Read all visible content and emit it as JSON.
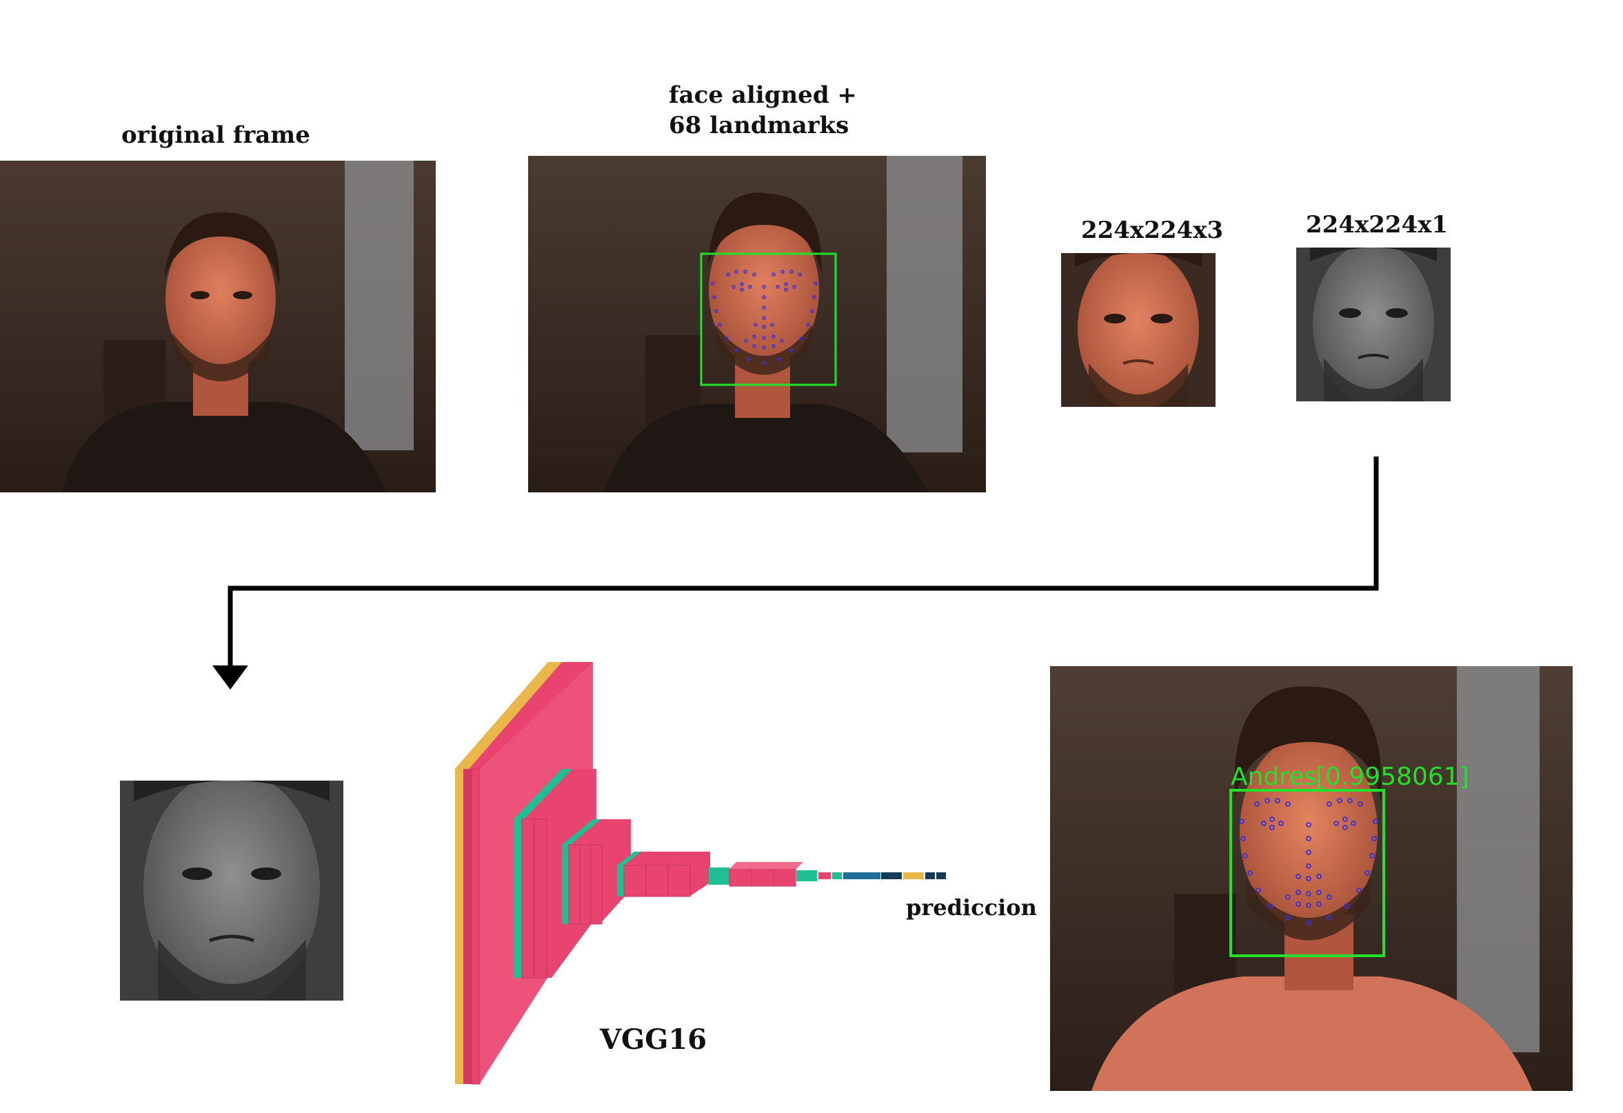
{
  "labels": {
    "original": "original frame",
    "aligned_line1": "face aligned +",
    "aligned_line2": "68 landmarks",
    "rgb": "224x224x3",
    "gray": "224x224x1",
    "net": "VGG16",
    "prediction": "prediccion"
  },
  "detection": {
    "name": "Andres",
    "score": "[0.9958061]"
  },
  "colors": {
    "box": "#22e12b",
    "landmark": "#3b2fd8",
    "arrow": "#000000",
    "net_pink": "#e8446f",
    "net_teal": "#1fbf93",
    "net_yellow": "#e8b84b",
    "net_blue": "#1f6f9a",
    "net_navy": "#173a55"
  }
}
